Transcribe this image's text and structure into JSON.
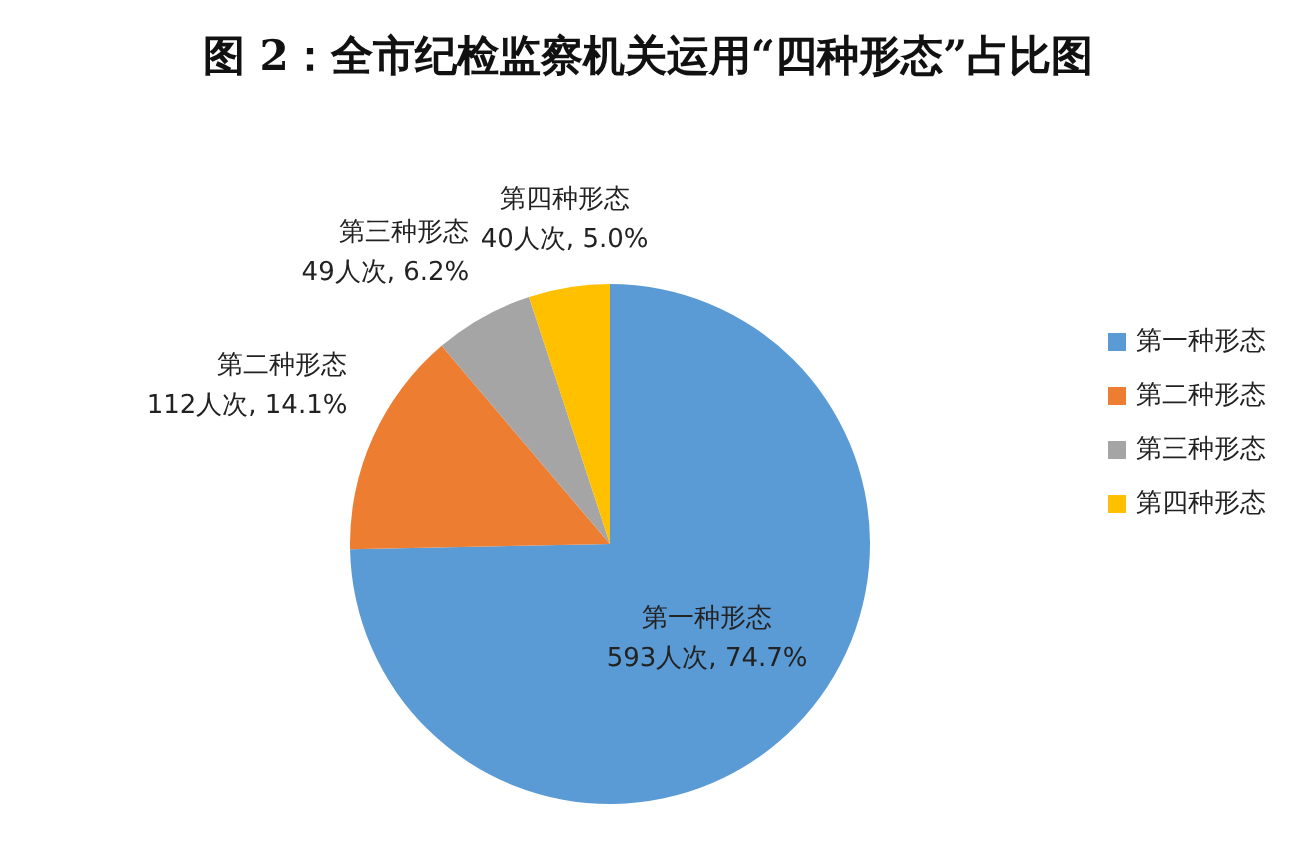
{
  "chart_data": {
    "type": "pie",
    "title": "图 2：全市纪检监察机关运用“四种形态”占比图",
    "categories": [
      "第一种形态",
      "第二种形态",
      "第三种形态",
      "第四种形态"
    ],
    "values": [
      593,
      112,
      49,
      40
    ],
    "colors": [
      "#5b9bd5",
      "#ed7d31",
      "#a5a5a5",
      "#ffc000"
    ],
    "value_labels": [
      "593人次, 74.7%",
      "112人次, 14.1%",
      "49人次, 6.2%",
      "40人次, 5.0%"
    ],
    "legend": "right"
  }
}
